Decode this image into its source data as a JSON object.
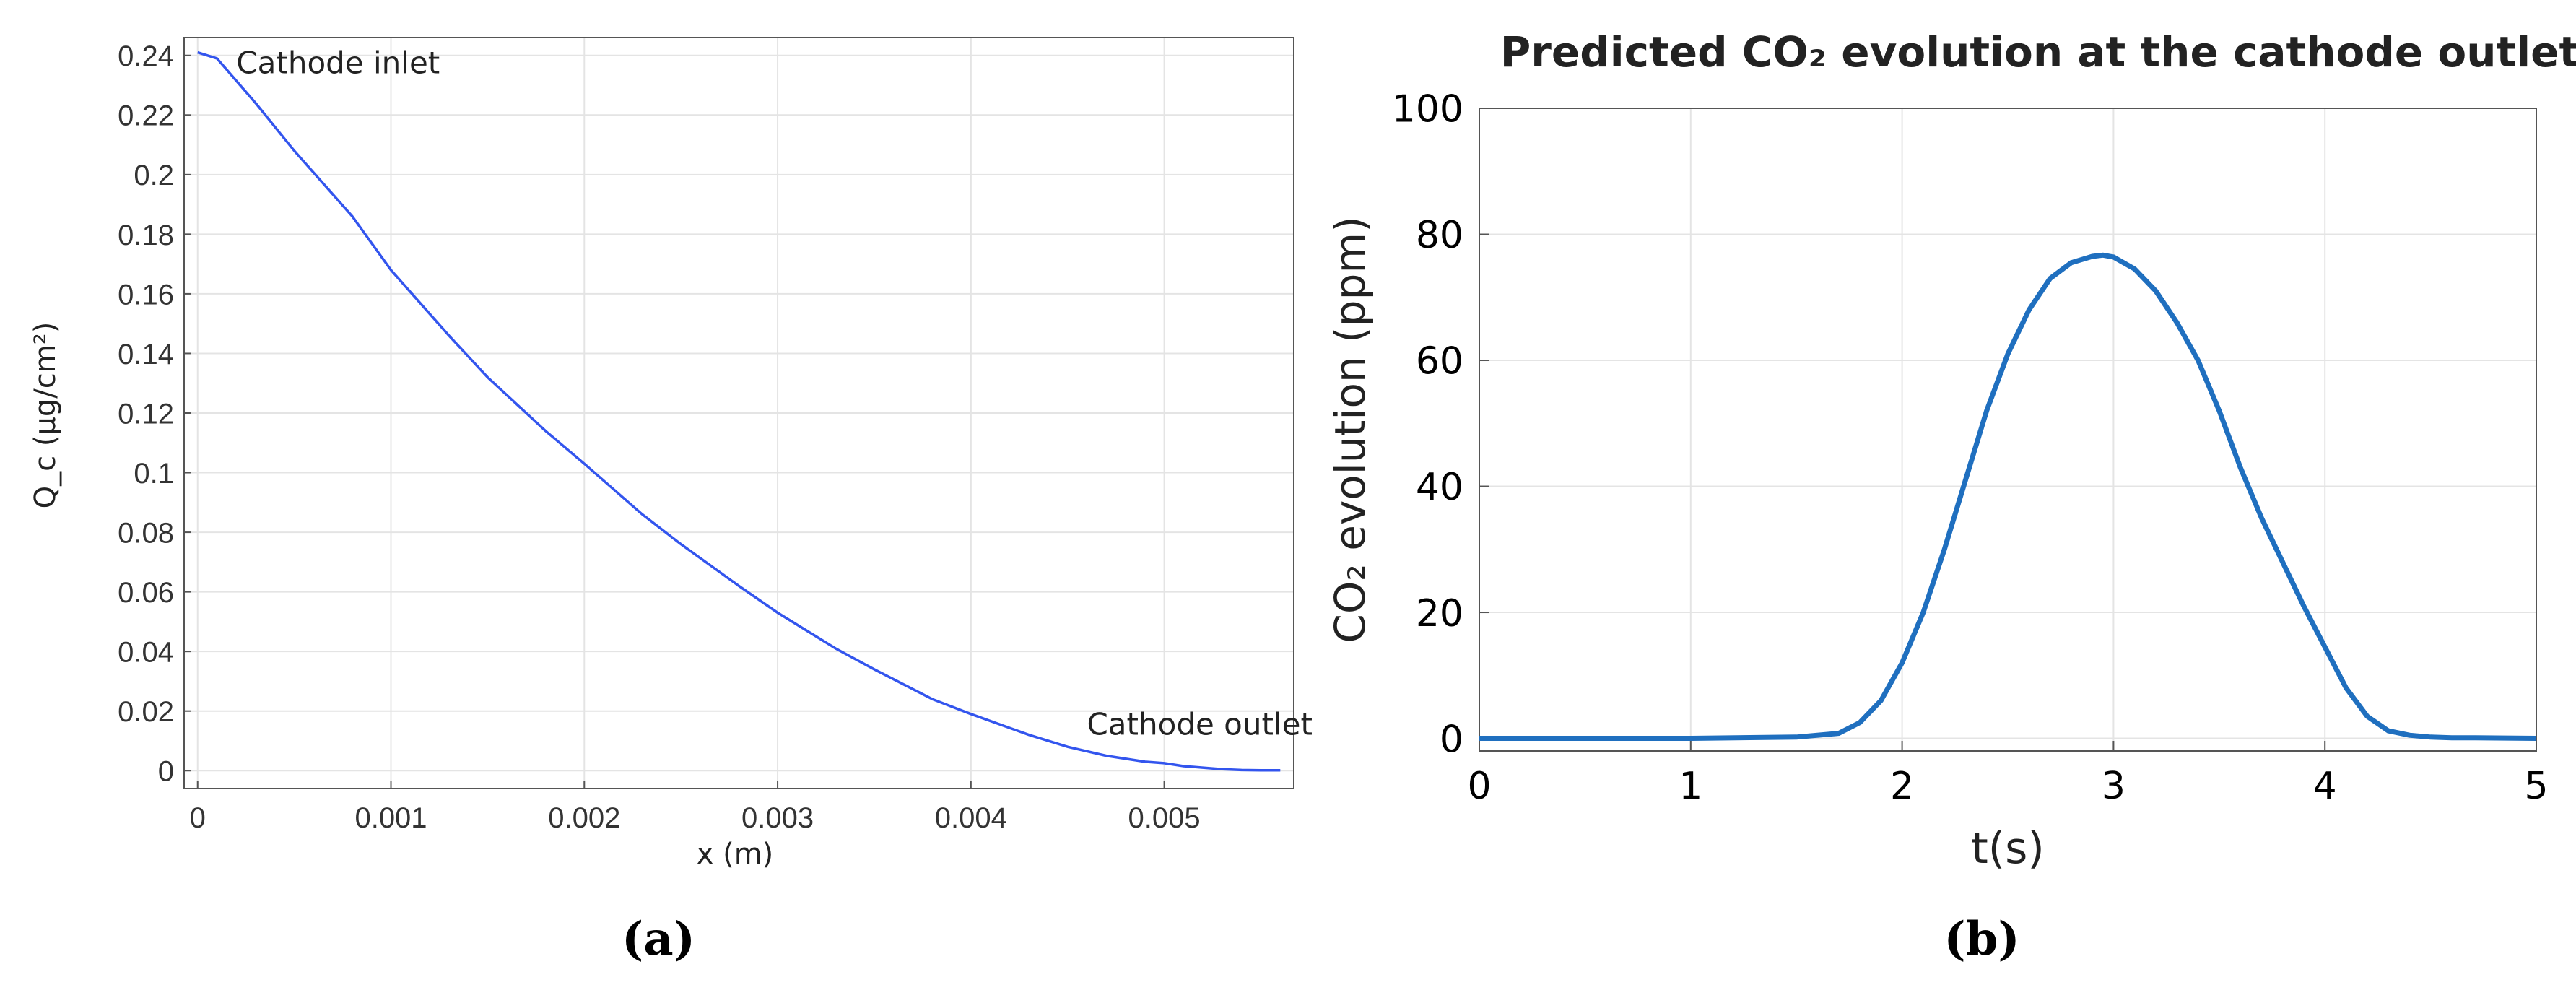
{
  "chart_data": [
    {
      "type": "line",
      "panel_caption": "(a)",
      "xlabel": "x (m)",
      "ylabel": "Q_c (µg/cm²)",
      "xlim": [
        -7e-05,
        0.00567
      ],
      "ylim": [
        -0.006,
        0.246
      ],
      "x_ticks": [
        "0",
        "0.001",
        "0.002",
        "0.003",
        "0.004",
        "0.005"
      ],
      "x_tick_values": [
        0,
        0.001,
        0.002,
        0.003,
        0.004,
        0.005
      ],
      "y_ticks": [
        "0",
        "0.02",
        "0.04",
        "0.06",
        "0.08",
        "0.1",
        "0.12",
        "0.14",
        "0.16",
        "0.18",
        "0.2",
        "0.22",
        "0.24"
      ],
      "y_tick_values": [
        0,
        0.02,
        0.04,
        0.06,
        0.08,
        0.1,
        0.12,
        0.14,
        0.16,
        0.18,
        0.2,
        0.22,
        0.24
      ],
      "grid": true,
      "line_color": "#3355ee",
      "annotations": [
        {
          "text": "Cathode inlet",
          "x": 0.0002,
          "y": 0.234
        },
        {
          "text": "Cathode outlet",
          "x": 0.0046,
          "y": 0.012
        }
      ],
      "series": [
        {
          "x": [
            0,
            0.0001,
            0.0003,
            0.0005,
            0.0008,
            0.001,
            0.0013,
            0.0015,
            0.0018,
            0.002,
            0.0023,
            0.0025,
            0.0028,
            0.003,
            0.0033,
            0.0035,
            0.0038,
            0.004,
            0.0043,
            0.0045,
            0.0047,
            0.0049,
            0.005,
            0.0051,
            0.0052,
            0.0053,
            0.0054,
            0.0055,
            0.0056
          ],
          "y": [
            0.241,
            0.239,
            0.224,
            0.208,
            0.186,
            0.168,
            0.146,
            0.132,
            0.114,
            0.103,
            0.086,
            0.076,
            0.062,
            0.053,
            0.041,
            0.034,
            0.024,
            0.019,
            0.012,
            0.008,
            0.005,
            0.003,
            0.0025,
            0.0015,
            0.001,
            0.0005,
            0.0002,
            0.0001,
            0.0001
          ]
        }
      ]
    },
    {
      "type": "line",
      "panel_caption": "(b)",
      "title": "Predicted CO₂ evolution at the cathode outlet",
      "xlabel": "t(s)",
      "ylabel": "CO₂ evolution (ppm)",
      "xlim": [
        0,
        5
      ],
      "ylim": [
        -2,
        100
      ],
      "x_ticks": [
        "0",
        "1",
        "2",
        "3",
        "4",
        "5"
      ],
      "x_tick_values": [
        0,
        1,
        2,
        3,
        4,
        5
      ],
      "y_ticks": [
        "0",
        "20",
        "40",
        "60",
        "80",
        "100"
      ],
      "y_tick_values": [
        0,
        20,
        40,
        60,
        80,
        100
      ],
      "grid": true,
      "line_color": "#1f6fbf",
      "series": [
        {
          "x": [
            0,
            0.5,
            1.0,
            1.5,
            1.7,
            1.8,
            1.9,
            2.0,
            2.1,
            2.2,
            2.3,
            2.4,
            2.5,
            2.6,
            2.7,
            2.8,
            2.9,
            2.95,
            3.0,
            3.1,
            3.2,
            3.3,
            3.4,
            3.5,
            3.6,
            3.7,
            3.8,
            3.9,
            4.0,
            4.1,
            4.2,
            4.3,
            4.4,
            4.5,
            4.6,
            4.7,
            5.0
          ],
          "y": [
            0,
            0,
            0,
            0.2,
            0.8,
            2.5,
            6,
            12,
            20,
            30,
            41,
            52,
            61,
            68,
            73,
            75.5,
            76.5,
            76.7,
            76.4,
            74.5,
            71,
            66,
            60,
            52,
            43,
            35,
            28,
            21,
            14.5,
            8,
            3.5,
            1.2,
            0.5,
            0.2,
            0.1,
            0.1,
            0
          ]
        }
      ]
    }
  ]
}
